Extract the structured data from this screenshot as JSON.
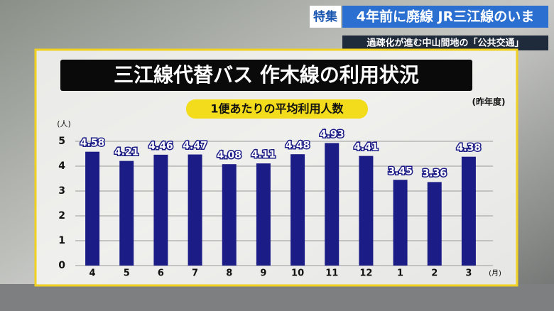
{
  "header": {
    "badge": "特集",
    "headline": "4年前に廃線 JR三江線のいま",
    "subheadline": "過疎化が進む中山間地の「公共交通」"
  },
  "chart_data": {
    "type": "bar",
    "title": "三江線代替バス 作木線の利用状況",
    "subtitle": "1便あたりの平均利用人数",
    "note": "(昨年度)",
    "y_label": "(人)",
    "x_label": "(月)",
    "categories": [
      "4",
      "5",
      "6",
      "7",
      "8",
      "9",
      "10",
      "11",
      "12",
      "1",
      "2",
      "3"
    ],
    "values": [
      4.58,
      4.21,
      4.46,
      4.47,
      4.08,
      4.11,
      4.48,
      4.93,
      4.41,
      3.45,
      3.36,
      4.38
    ],
    "color": "#1b1c86",
    "ylim": [
      0,
      5.5
    ],
    "yticks": [
      0,
      1,
      2,
      3,
      4,
      5
    ],
    "grid": true
  }
}
